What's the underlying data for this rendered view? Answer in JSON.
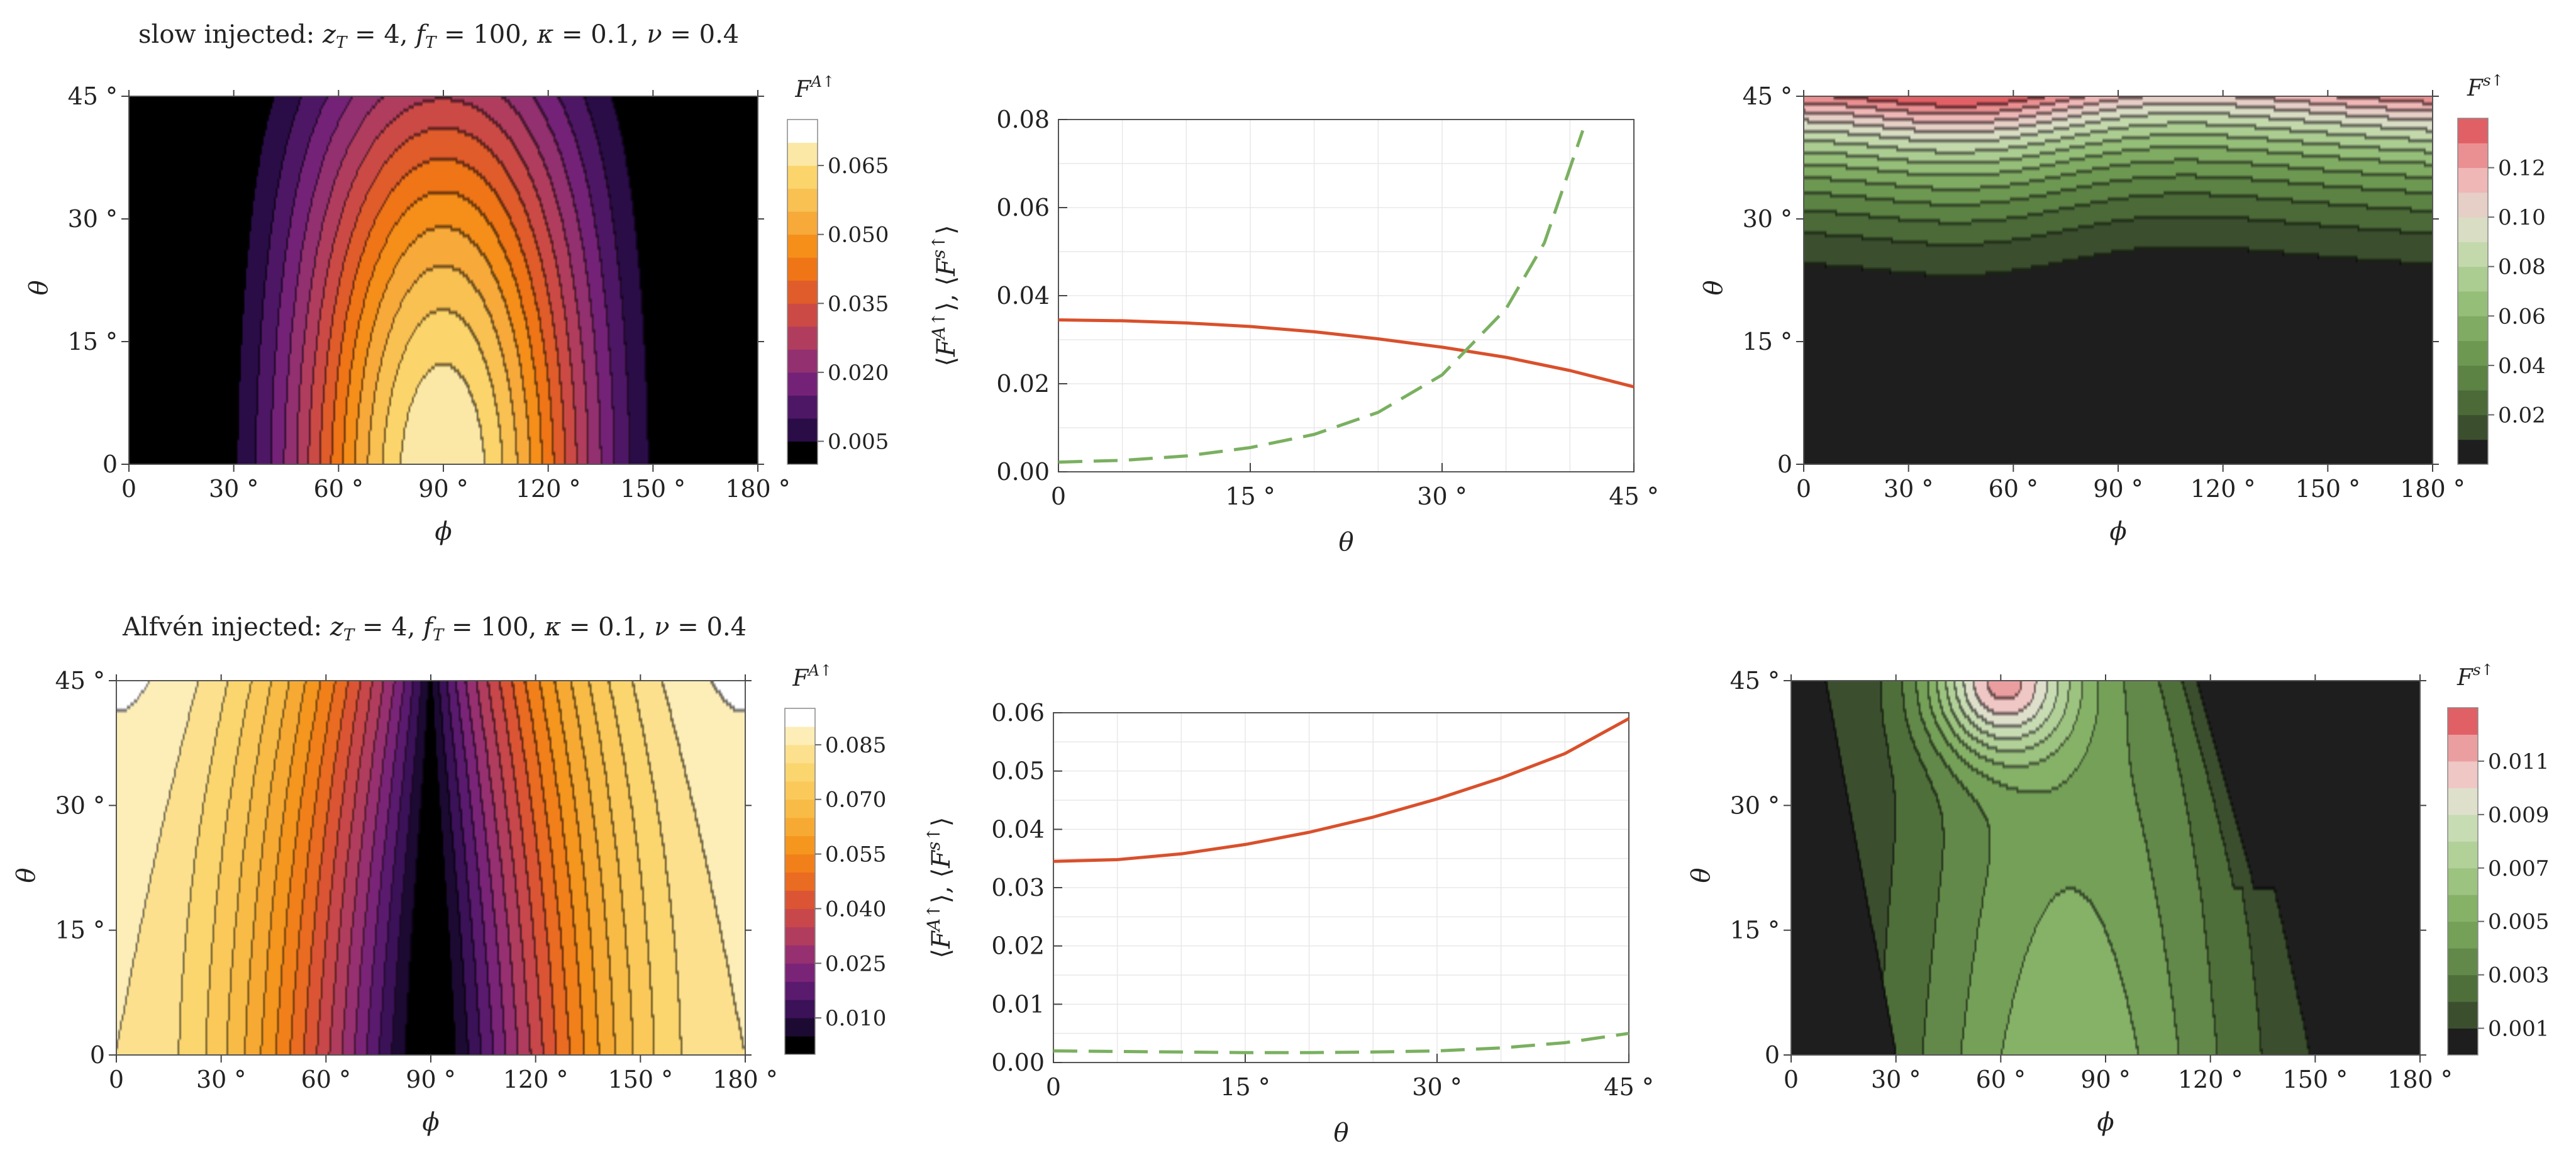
{
  "rows": [
    {
      "title": "slow injected:  z_T = 4,  f_T = 100,  κ = 0.1,  ν = 0.4",
      "title_parts": {
        "prefix": "slow injected:",
        "zT": "4",
        "fT": "100",
        "kappa": "0.1",
        "nu": "0.4"
      }
    },
    {
      "title": "Alfvén injected:  z_T = 4,  f_T = 100,  κ = 0.1,  ν = 0.4",
      "title_parts": {
        "prefix": "Alfvén injected:",
        "zT": "4",
        "fT": "100",
        "kappa": "0.1",
        "nu": "0.4"
      }
    }
  ],
  "chart_data": [
    {
      "id": "slow-alfven-contour",
      "type": "heatmap",
      "kind": "contour",
      "title": "",
      "xlabel": "ϕ",
      "ylabel": "θ",
      "xlim": [
        0,
        180
      ],
      "ylim": [
        0,
        45
      ],
      "xticks": [
        0,
        30,
        60,
        90,
        120,
        150,
        180
      ],
      "yticks": [
        0,
        15,
        30,
        45
      ],
      "xtick_labels": [
        "0",
        "30 °",
        "60 °",
        "90 °",
        "120 °",
        "150 °",
        "180 °"
      ],
      "ytick_labels": [
        "0",
        "15 °",
        "30 °",
        "45 °"
      ],
      "legend": {
        "title": "F^{A↑}",
        "ticks": [
          0.005,
          0.02,
          0.035,
          0.05,
          0.065
        ],
        "tick_labels": [
          "0.005",
          "0.020",
          "0.035",
          "0.050",
          "0.065"
        ]
      },
      "levels": [
        0,
        0.005,
        0.01,
        0.015,
        0.02,
        0.025,
        0.03,
        0.035,
        0.04,
        0.045,
        0.05,
        0.055,
        0.06,
        0.065,
        0.07
      ],
      "colors": [
        "#000000",
        "#2a0c47",
        "#4e1765",
        "#742277",
        "#933070",
        "#b13d5e",
        "#cc4a45",
        "#e05c2a",
        "#ef7517",
        "#f58f1a",
        "#f7a93a",
        "#f9c052",
        "#fbd46b",
        "#fce8a6",
        "#ffffff"
      ],
      "field": "slow_A"
    },
    {
      "id": "slow-averages",
      "type": "line",
      "title": "",
      "xlabel": "θ",
      "ylabel": "⟨F^{A↑}⟩,   ⟨F^{s↑}⟩",
      "xlim": [
        0,
        45
      ],
      "ylim": [
        0,
        0.08
      ],
      "xticks": [
        0,
        15,
        30,
        45
      ],
      "xtick_labels": [
        "0",
        "15 °",
        "30 °",
        "45 °"
      ],
      "yticks": [
        0,
        0.02,
        0.04,
        0.06,
        0.08
      ],
      "ytick_labels": [
        "0.00",
        "0.02",
        "0.04",
        "0.06",
        "0.08"
      ],
      "grid": true,
      "x": [
        0,
        5,
        10,
        15,
        20,
        25,
        30,
        35,
        40,
        41,
        45
      ],
      "series": [
        {
          "name": "⟨F^{A↑}⟩",
          "color": "#d9502b",
          "dash": "solid",
          "x": [
            0,
            5,
            10,
            15,
            20,
            25,
            30,
            35,
            40,
            45
          ],
          "values": [
            0.0345,
            0.0343,
            0.0338,
            0.033,
            0.0318,
            0.0302,
            0.0283,
            0.026,
            0.023,
            0.0193
          ]
        },
        {
          "name": "⟨F^{s↑}⟩",
          "color": "#7ab060",
          "dash": "dashed",
          "x": [
            0,
            5,
            10,
            15,
            20,
            25,
            30,
            35,
            38,
            41
          ],
          "values": [
            0.0022,
            0.0026,
            0.0036,
            0.0055,
            0.0085,
            0.0135,
            0.022,
            0.037,
            0.052,
            0.0775
          ]
        }
      ]
    },
    {
      "id": "slow-s-contour",
      "type": "heatmap",
      "kind": "contour",
      "title": "",
      "xlabel": "ϕ",
      "ylabel": "θ",
      "xlim": [
        0,
        180
      ],
      "ylim": [
        0,
        45
      ],
      "xticks": [
        0,
        30,
        60,
        90,
        120,
        150,
        180
      ],
      "yticks": [
        0,
        15,
        30,
        45
      ],
      "xtick_labels": [
        "0",
        "30 °",
        "60 °",
        "90 °",
        "120 °",
        "150 °",
        "180 °"
      ],
      "ytick_labels": [
        "0",
        "15 °",
        "30 °",
        "45 °"
      ],
      "legend": {
        "title": "F^{s↑}",
        "ticks": [
          0.02,
          0.04,
          0.06,
          0.08,
          0.1,
          0.12
        ],
        "tick_labels": [
          "0.02",
          "0.04",
          "0.06",
          "0.08",
          "0.10",
          "0.12"
        ]
      },
      "levels": [
        0,
        0.01,
        0.02,
        0.03,
        0.04,
        0.05,
        0.06,
        0.07,
        0.08,
        0.09,
        0.1,
        0.11,
        0.12,
        0.13
      ],
      "colors": [
        "#1e1e1e",
        "#3b4f2f",
        "#4b6a38",
        "#5c8244",
        "#6d9852",
        "#80ab63",
        "#95be79",
        "#abcd91",
        "#c3d9ac",
        "#d8ddc3",
        "#e6cfc6",
        "#f0b7b7",
        "#ea9092",
        "#e16066"
      ],
      "field": "slow_s"
    },
    {
      "id": "alfven-alfven-contour",
      "type": "heatmap",
      "kind": "contour",
      "title": "",
      "xlabel": "ϕ",
      "ylabel": "θ",
      "xlim": [
        0,
        180
      ],
      "ylim": [
        0,
        45
      ],
      "xticks": [
        0,
        30,
        60,
        90,
        120,
        150,
        180
      ],
      "yticks": [
        0,
        15,
        30,
        45
      ],
      "xtick_labels": [
        "0",
        "30 °",
        "60 °",
        "90 °",
        "120 °",
        "150 °",
        "180 °"
      ],
      "ytick_labels": [
        "0",
        "15 °",
        "30 °",
        "45 °"
      ],
      "legend": {
        "title": "F^{A↑}",
        "ticks": [
          0.01,
          0.025,
          0.04,
          0.055,
          0.07,
          0.085
        ],
        "tick_labels": [
          "0.010",
          "0.025",
          "0.040",
          "0.055",
          "0.070",
          "0.085"
        ]
      },
      "levels": [
        0,
        0.005,
        0.01,
        0.015,
        0.02,
        0.025,
        0.03,
        0.035,
        0.04,
        0.045,
        0.05,
        0.055,
        0.06,
        0.065,
        0.07,
        0.075,
        0.08,
        0.085,
        0.09
      ],
      "colors": [
        "#000000",
        "#1c0a33",
        "#3b1157",
        "#5a1a6e",
        "#7a2478",
        "#973070",
        "#b13d5e",
        "#c8474a",
        "#db5535",
        "#ea6b22",
        "#f2801a",
        "#f5961f",
        "#f7aa33",
        "#f8bb45",
        "#fac95a",
        "#fbd56e",
        "#fce08d",
        "#fdedb6",
        "#ffffff"
      ],
      "field": "alf_A"
    },
    {
      "id": "alfven-averages",
      "type": "line",
      "title": "",
      "xlabel": "θ",
      "ylabel": "⟨F^{A↑}⟩,   ⟨F^{s↑}⟩",
      "xlim": [
        0,
        45
      ],
      "ylim": [
        0,
        0.06
      ],
      "xticks": [
        0,
        15,
        30,
        45
      ],
      "xtick_labels": [
        "0",
        "15 °",
        "30 °",
        "45 °"
      ],
      "yticks": [
        0,
        0.01,
        0.02,
        0.03,
        0.04,
        0.05,
        0.06
      ],
      "ytick_labels": [
        "0.00",
        "0.01",
        "0.02",
        "0.03",
        "0.04",
        "0.05",
        "0.06"
      ],
      "grid": true,
      "x": [
        0,
        5,
        10,
        15,
        20,
        25,
        30,
        35,
        40,
        45
      ],
      "series": [
        {
          "name": "⟨F^{A↑}⟩",
          "color": "#d9502b",
          "dash": "solid",
          "x": [
            0,
            5,
            10,
            15,
            20,
            25,
            30,
            35,
            40,
            45
          ],
          "values": [
            0.0345,
            0.0348,
            0.0358,
            0.0374,
            0.0395,
            0.0421,
            0.0452,
            0.0488,
            0.053,
            0.059
          ]
        },
        {
          "name": "⟨F^{s↑}⟩",
          "color": "#7ab060",
          "dash": "dashed",
          "x": [
            0,
            5,
            10,
            15,
            20,
            25,
            30,
            35,
            40,
            45
          ],
          "values": [
            0.002,
            0.0019,
            0.0018,
            0.0017,
            0.0017,
            0.0018,
            0.002,
            0.0025,
            0.0034,
            0.005
          ]
        }
      ]
    },
    {
      "id": "alfven-s-contour",
      "type": "heatmap",
      "kind": "contour",
      "title": "",
      "xlabel": "ϕ",
      "ylabel": "θ",
      "xlim": [
        0,
        180
      ],
      "ylim": [
        0,
        45
      ],
      "xticks": [
        0,
        30,
        60,
        90,
        120,
        150,
        180
      ],
      "yticks": [
        0,
        15,
        30,
        45
      ],
      "xtick_labels": [
        "0",
        "30 °",
        "60 °",
        "90 °",
        "120 °",
        "150 °",
        "180 °"
      ],
      "ytick_labels": [
        "0",
        "15 °",
        "30 °",
        "45 °"
      ],
      "legend": {
        "title": "F^{s↑}",
        "ticks": [
          0.001,
          0.003,
          0.005,
          0.007,
          0.009,
          0.011
        ],
        "tick_labels": [
          "0.001",
          "0.003",
          "0.005",
          "0.007",
          "0.009",
          "0.011"
        ]
      },
      "levels": [
        0,
        0.001,
        0.002,
        0.003,
        0.004,
        0.005,
        0.006,
        0.007,
        0.008,
        0.009,
        0.01,
        0.011,
        0.012
      ],
      "colors": [
        "#1e1e1e",
        "#3b4f2f",
        "#4f6f3a",
        "#62894a",
        "#74a058",
        "#86b268",
        "#9cc37f",
        "#b2d199",
        "#c8dcb4",
        "#dfe0cc",
        "#efc7c5",
        "#eb9ea0",
        "#e16066"
      ],
      "field": "alf_s"
    }
  ]
}
